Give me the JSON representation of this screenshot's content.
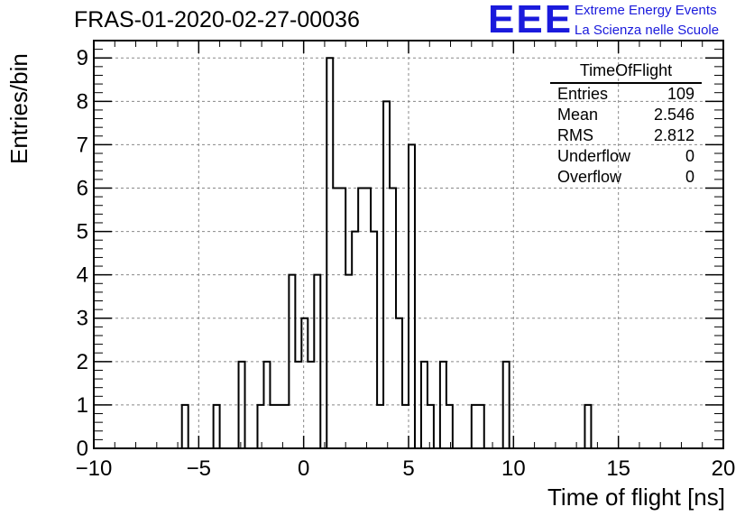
{
  "title": "FRAS-01-2020-02-27-00036",
  "brand": {
    "logo": "EEE",
    "line1": "Extreme Energy Events",
    "line2": "La Scienza nelle Scuole",
    "color": "#1a1adc"
  },
  "stats": {
    "name": "TimeOfFlight",
    "rows": [
      {
        "label": "Entries",
        "value": "109"
      },
      {
        "label": "Mean",
        "value": "2.546"
      },
      {
        "label": "RMS",
        "value": "2.812"
      },
      {
        "label": "Underflow",
        "value": "0"
      },
      {
        "label": "Overflow",
        "value": "0"
      }
    ]
  },
  "chart_data": {
    "type": "bar",
    "histogram": "step",
    "xlabel": "Time of flight [ns]",
    "ylabel": "Entries/bin",
    "xlim": [
      -10,
      20
    ],
    "ylim": [
      0,
      9.4
    ],
    "bin_width": 0.3,
    "grid": true,
    "xticks": [
      -10,
      -5,
      0,
      5,
      10,
      15,
      20
    ],
    "yticks": [
      0,
      1,
      2,
      3,
      4,
      5,
      6,
      7,
      8,
      9
    ],
    "bins": [
      {
        "x0": -5.8,
        "y": 1
      },
      {
        "x0": -4.3,
        "y": 1
      },
      {
        "x0": -3.1,
        "y": 2
      },
      {
        "x0": -2.2,
        "y": 1
      },
      {
        "x0": -1.9,
        "y": 2
      },
      {
        "x0": -1.6,
        "y": 1
      },
      {
        "x0": -1.3,
        "y": 1
      },
      {
        "x0": -1.0,
        "y": 1
      },
      {
        "x0": -0.7,
        "y": 4
      },
      {
        "x0": -0.4,
        "y": 2
      },
      {
        "x0": -0.1,
        "y": 3
      },
      {
        "x0": 0.2,
        "y": 2
      },
      {
        "x0": 0.5,
        "y": 4
      },
      {
        "x0": 1.1,
        "y": 9
      },
      {
        "x0": 1.4,
        "y": 6
      },
      {
        "x0": 1.7,
        "y": 6
      },
      {
        "x0": 2.0,
        "y": 4
      },
      {
        "x0": 2.3,
        "y": 5
      },
      {
        "x0": 2.6,
        "y": 6
      },
      {
        "x0": 2.9,
        "y": 6
      },
      {
        "x0": 3.2,
        "y": 5
      },
      {
        "x0": 3.5,
        "y": 1
      },
      {
        "x0": 3.8,
        "y": 8
      },
      {
        "x0": 4.1,
        "y": 6
      },
      {
        "x0": 4.4,
        "y": 3
      },
      {
        "x0": 4.7,
        "y": 1
      },
      {
        "x0": 5.0,
        "y": 7
      },
      {
        "x0": 5.6,
        "y": 2
      },
      {
        "x0": 5.9,
        "y": 1
      },
      {
        "x0": 6.5,
        "y": 2
      },
      {
        "x0": 6.8,
        "y": 1
      },
      {
        "x0": 8.0,
        "y": 1
      },
      {
        "x0": 8.3,
        "y": 1
      },
      {
        "x0": 9.5,
        "y": 2
      },
      {
        "x0": 13.4,
        "y": 1
      }
    ]
  }
}
